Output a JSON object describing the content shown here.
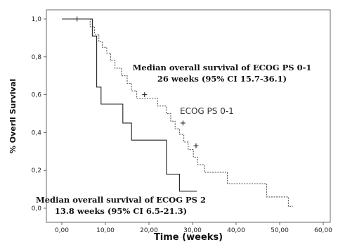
{
  "chart_data": {
    "type": "line",
    "xlabel": "Time (weeks)",
    "ylabel": "% Overll Survival",
    "xlim": [
      0,
      60
    ],
    "ylim": [
      0,
      1.0
    ],
    "x_ticks": [
      "0,00",
      "10,00",
      "20,00",
      "30,00",
      "40,00",
      "50,00",
      "60,00"
    ],
    "y_ticks": [
      "0,0",
      "0,2",
      "0,4",
      "0,6",
      "0,8",
      "1,0"
    ],
    "grid": false,
    "series": [
      {
        "name": "ECOG PS 0-1",
        "style": "dotted",
        "color": "#555555",
        "x": [
          0,
          6.5,
          6.5,
          7.5,
          7.5,
          8.5,
          8.5,
          9.3,
          9.3,
          10.3,
          10.3,
          11.2,
          11.2,
          12.2,
          12.2,
          13.7,
          13.7,
          15,
          15,
          16,
          16,
          17.2,
          17.2,
          22,
          22,
          24,
          24,
          25,
          25,
          26,
          26,
          27,
          27,
          28,
          28,
          29,
          29,
          30.2,
          30.2,
          31.2,
          31.2,
          32.7,
          32.7,
          38,
          38,
          47,
          47,
          52,
          52,
          53
        ],
        "y": [
          1.0,
          1.0,
          0.96,
          0.96,
          0.92,
          0.92,
          0.88,
          0.88,
          0.85,
          0.85,
          0.82,
          0.82,
          0.78,
          0.78,
          0.74,
          0.74,
          0.7,
          0.7,
          0.66,
          0.66,
          0.62,
          0.62,
          0.58,
          0.58,
          0.54,
          0.54,
          0.5,
          0.5,
          0.46,
          0.46,
          0.42,
          0.42,
          0.39,
          0.39,
          0.35,
          0.35,
          0.31,
          0.31,
          0.27,
          0.27,
          0.23,
          0.23,
          0.19,
          0.19,
          0.13,
          0.13,
          0.06,
          0.06,
          0.01,
          0.01
        ],
        "censor": [
          [
            3.5,
            1.0
          ],
          [
            19,
            0.6
          ],
          [
            27.8,
            0.45
          ],
          [
            30.8,
            0.33
          ]
        ]
      },
      {
        "name": "ECOG PS 2",
        "style": "solid",
        "color": "#222222",
        "x": [
          0,
          7,
          7,
          8,
          8,
          9,
          9,
          14,
          14,
          16,
          16,
          24,
          24,
          27,
          27,
          31
        ],
        "y": [
          1.0,
          1.0,
          0.91,
          0.91,
          0.64,
          0.64,
          0.55,
          0.55,
          0.45,
          0.45,
          0.36,
          0.36,
          0.18,
          0.18,
          0.09,
          0.09
        ],
        "censor": []
      }
    ],
    "annotations": [
      {
        "line1": "Median overall survival of ECOG PS 0-1",
        "line2": "26 weeks (95% CI 15.7-36.1)"
      },
      {
        "line1": "Median overall survival of ECOG PS 2",
        "line2": "13.8 weeks (95% CI 6.5-21.3)"
      }
    ],
    "series_label": "ECOG PS 0-1"
  }
}
